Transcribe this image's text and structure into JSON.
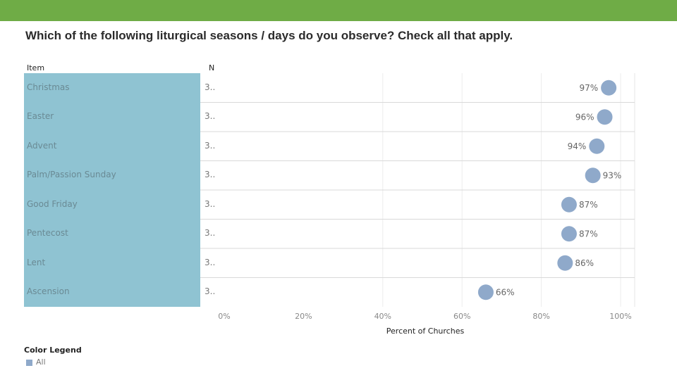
{
  "header": {
    "title": "Which of the following liturgical seasons / days do you observe? Check all that apply."
  },
  "columns": {
    "item": "Item",
    "n": "N"
  },
  "colors": {
    "topbar": "#6fac46",
    "label_panel": "#8fc3d2",
    "dot": "#8fa9ca"
  },
  "chart_data": {
    "type": "scatter",
    "categories": [
      "Christmas",
      "Easter",
      "Advent",
      "Palm/Passion Sunday",
      "Good Friday",
      "Pentecost",
      "Lent",
      "Ascension"
    ],
    "n_values": [
      "3..",
      "3..",
      "3..",
      "3..",
      "3..",
      "3..",
      "3..",
      "3.."
    ],
    "series": [
      {
        "name": "All",
        "values": [
          97,
          96,
          94,
          93,
          87,
          87,
          86,
          66
        ]
      }
    ],
    "data_labels": [
      "97%",
      "96%",
      "94%",
      "93%",
      "87%",
      "87%",
      "86%",
      "66%"
    ],
    "xlabel": "Percent of Churches",
    "xlim": [
      0,
      100
    ],
    "xticks": [
      "0%",
      "20%",
      "40%",
      "60%",
      "80%",
      "100%"
    ],
    "grid": true,
    "legend": {
      "title": "Color Legend",
      "items": [
        "All"
      ],
      "placement": "bottom-left"
    }
  }
}
